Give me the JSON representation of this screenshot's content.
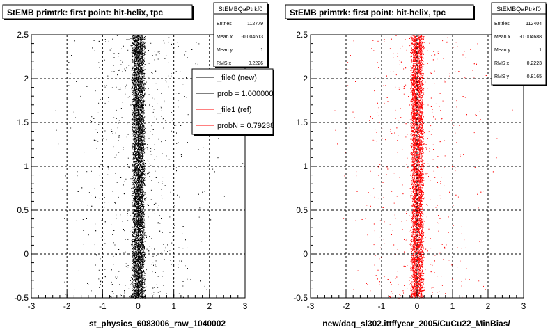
{
  "chart_data": [
    {
      "type": "scatter",
      "title": "StEMB primtrk: first point: hit-helix, tpc",
      "xlabel": "st_physics_6083006_raw_1040002",
      "ylabel": "",
      "xlim": [
        -3,
        3
      ],
      "ylim": [
        -0.5,
        2.5
      ],
      "x_ticks": [
        "-3",
        "-2",
        "-1",
        "0",
        "1",
        "2",
        "3"
      ],
      "y_ticks": [
        "-0.5",
        "0",
        "0.5",
        "1",
        "1.5",
        "2",
        "2.5"
      ],
      "grid": true,
      "marker_color": "#000000",
      "distribution": {
        "center_x": 0.0,
        "core_halfwidth": 0.2,
        "tail_sigma": 0.9,
        "tail_fraction": 0.1
      },
      "stats": {
        "name": "StEMBQaPtrkf0",
        "rows": [
          {
            "label": "Entries",
            "value": "112779"
          },
          {
            "label": "Mean x",
            "value": "-0.004613"
          },
          {
            "label": "Mean y",
            "value": "1"
          },
          {
            "label": "RMS x",
            "value": "0.2226"
          }
        ]
      },
      "legend": {
        "placement": "right",
        "entries": [
          {
            "label": "_file0 (new)",
            "color": "#000000"
          },
          {
            "label": "prob = 1.000000",
            "color": "#000000"
          },
          {
            "label": "_file1 (ref)",
            "color": "#ff0000"
          },
          {
            "label": "probN = 0.79238",
            "color": "#ff0000"
          }
        ]
      }
    },
    {
      "type": "scatter",
      "title": "StEMB primtrk: first point: hit-helix, tpc",
      "xlabel": "new/daq_sl302.ittf/year_2005/CuCu22_MinBias/",
      "ylabel": "",
      "xlim": [
        -3,
        3
      ],
      "ylim": [
        -0.5,
        2.5
      ],
      "x_ticks": [
        "-3",
        "-2",
        "-1",
        "0",
        "1",
        "2",
        "3"
      ],
      "y_ticks": [
        "-0.5",
        "0",
        "0.5",
        "1",
        "1.5",
        "2",
        "2.5"
      ],
      "grid": true,
      "marker_color": "#ff0000",
      "distribution": {
        "center_x": 0.0,
        "core_halfwidth": 0.2,
        "tail_sigma": 0.9,
        "tail_fraction": 0.1
      },
      "stats": {
        "name": "StEMBQaPtrkf0",
        "rows": [
          {
            "label": "Entries",
            "value": "112404"
          },
          {
            "label": "Mean x",
            "value": "-0.004688"
          },
          {
            "label": "Mean y",
            "value": "1"
          },
          {
            "label": "RMS x",
            "value": "0.2223"
          },
          {
            "label": "RMS y",
            "value": "0.8165"
          }
        ]
      }
    }
  ]
}
